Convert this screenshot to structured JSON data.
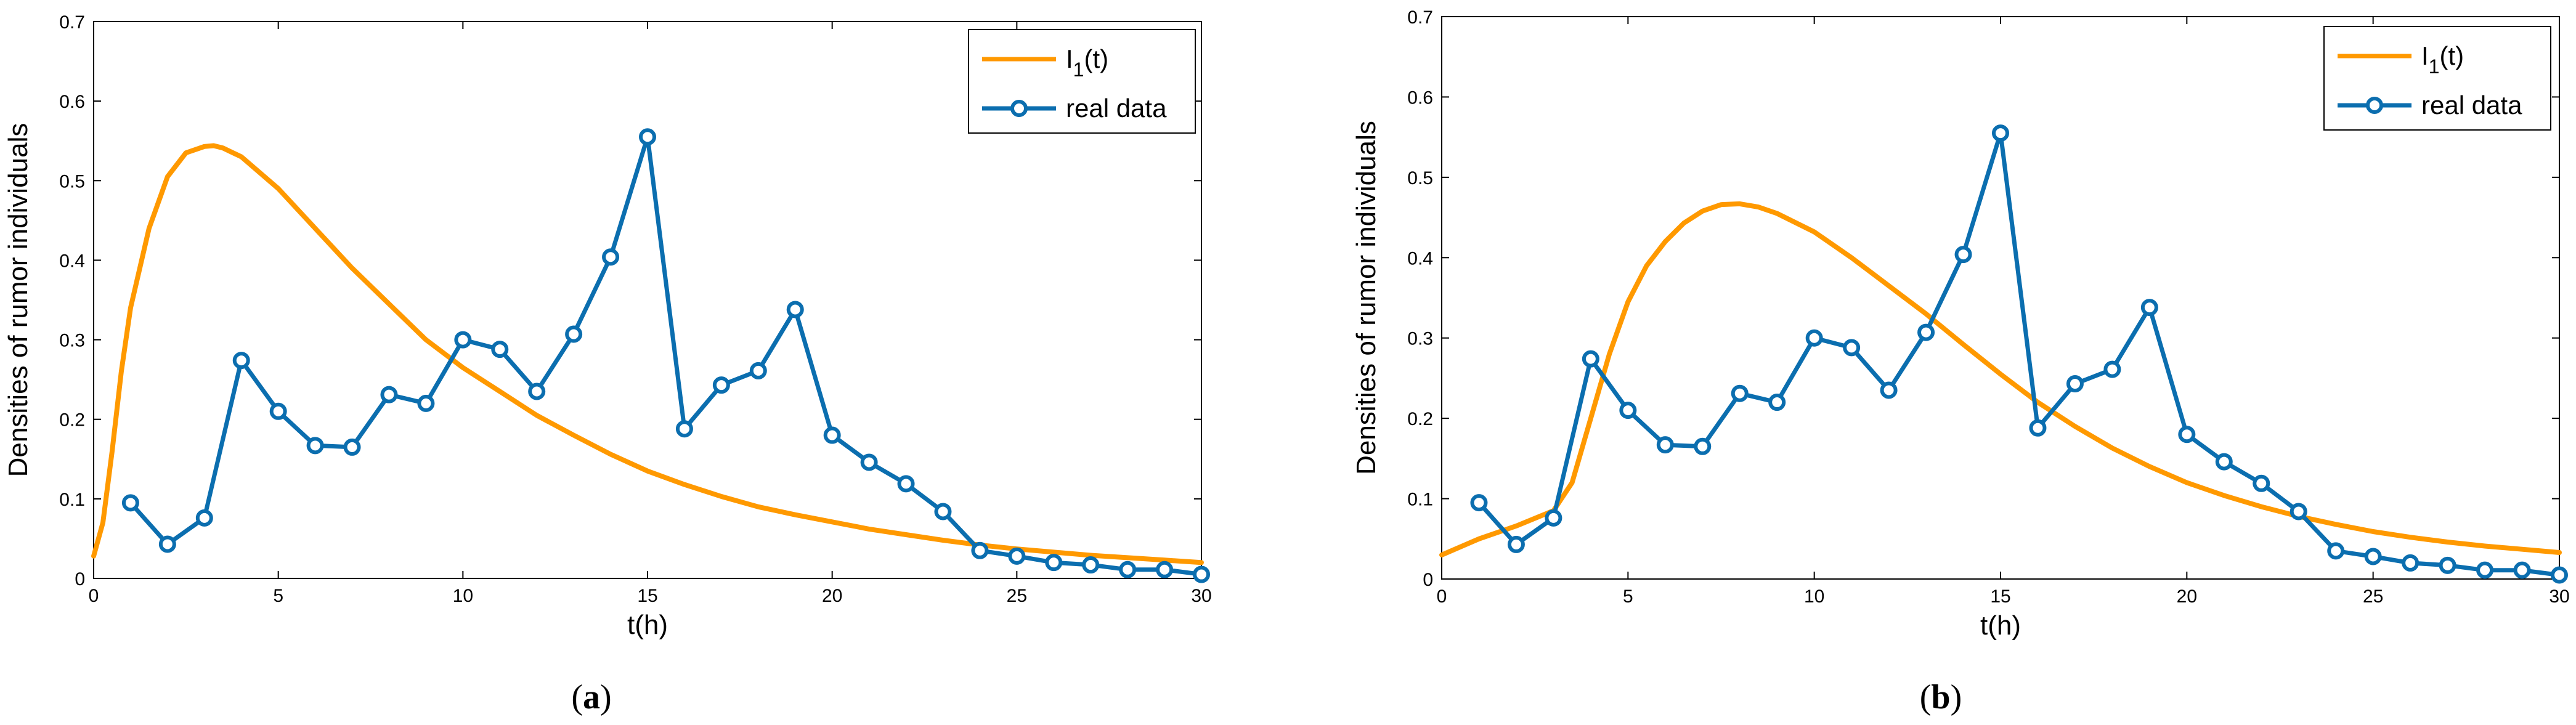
{
  "chart_data": [
    {
      "type": "line",
      "caption_label": "a",
      "xlabel": "t(h)",
      "ylabel": "Densities of rumor individuals",
      "xlim": [
        0,
        30
      ],
      "ylim": [
        0,
        0.7
      ],
      "xticks": [
        "0",
        "5",
        "10",
        "15",
        "20",
        "25",
        "30"
      ],
      "yticks": [
        "0",
        "0.1",
        "0.2",
        "0.3",
        "0.4",
        "0.5",
        "0.6",
        "0.7"
      ],
      "legend": {
        "position": "top-right",
        "entries": [
          {
            "main": "I",
            "sub": "1",
            "tail": "(t)"
          },
          {
            "main": "real data",
            "sub": "",
            "tail": ""
          }
        ]
      },
      "series": [
        {
          "name": "I1(t)",
          "color": "#ff9900",
          "marker": "none",
          "x": [
            0,
            0.25,
            0.5,
            0.75,
            1,
            1.5,
            2,
            2.5,
            3,
            3.25,
            3.5,
            4,
            5,
            6,
            7,
            8,
            9,
            10,
            11,
            12,
            13,
            14,
            15,
            16,
            17,
            18,
            19,
            20,
            21,
            22,
            23,
            24,
            25,
            26,
            27,
            28,
            29,
            30
          ],
          "y": [
            0.028,
            0.07,
            0.16,
            0.26,
            0.34,
            0.44,
            0.505,
            0.535,
            0.543,
            0.544,
            0.541,
            0.53,
            0.49,
            0.44,
            0.39,
            0.345,
            0.3,
            0.265,
            0.235,
            0.205,
            0.18,
            0.156,
            0.135,
            0.118,
            0.103,
            0.09,
            0.08,
            0.071,
            0.062,
            0.055,
            0.048,
            0.042,
            0.037,
            0.033,
            0.029,
            0.026,
            0.023,
            0.02
          ]
        },
        {
          "name": "real data",
          "color": "#0b6eaf",
          "marker": "circle",
          "x": [
            1,
            2,
            3,
            4,
            5,
            6,
            7,
            8,
            9,
            10,
            11,
            12,
            13,
            14,
            15,
            16,
            17,
            18,
            19,
            20,
            21,
            22,
            23,
            24,
            25,
            26,
            27,
            28,
            29,
            30
          ],
          "y": [
            0.095,
            0.043,
            0.076,
            0.274,
            0.21,
            0.167,
            0.165,
            0.231,
            0.22,
            0.3,
            0.288,
            0.235,
            0.307,
            0.404,
            0.555,
            0.188,
            0.243,
            0.261,
            0.338,
            0.18,
            0.146,
            0.119,
            0.084,
            0.035,
            0.028,
            0.02,
            0.017,
            0.011,
            0.011,
            0.005
          ]
        }
      ]
    },
    {
      "type": "line",
      "caption_label": "b",
      "xlabel": "t(h)",
      "ylabel": "Densities of rumor individuals",
      "xlim": [
        0,
        30
      ],
      "ylim": [
        0,
        0.7
      ],
      "xticks": [
        "0",
        "5",
        "10",
        "15",
        "20",
        "25",
        "30"
      ],
      "yticks": [
        "0",
        "0.1",
        "0.2",
        "0.3",
        "0.4",
        "0.5",
        "0.6",
        "0.7"
      ],
      "legend": {
        "position": "top-right",
        "entries": [
          {
            "main": "I",
            "sub": "1",
            "tail": "(t)"
          },
          {
            "main": "real data",
            "sub": "",
            "tail": ""
          }
        ]
      },
      "series": [
        {
          "name": "I1(t)",
          "color": "#ff9900",
          "marker": "none",
          "x": [
            0,
            1,
            2,
            3,
            3.5,
            4,
            4.5,
            5,
            5.5,
            6,
            6.5,
            7,
            7.5,
            8,
            8.5,
            9,
            10,
            11,
            12,
            13,
            14,
            15,
            16,
            17,
            18,
            19,
            20,
            21,
            22,
            23,
            24,
            25,
            26,
            27,
            28,
            29,
            30
          ],
          "y": [
            0.03,
            0.05,
            0.066,
            0.085,
            0.12,
            0.2,
            0.28,
            0.345,
            0.39,
            0.42,
            0.443,
            0.458,
            0.466,
            0.467,
            0.463,
            0.455,
            0.432,
            0.4,
            0.365,
            0.33,
            0.292,
            0.255,
            0.22,
            0.19,
            0.163,
            0.14,
            0.12,
            0.104,
            0.09,
            0.078,
            0.068,
            0.059,
            0.052,
            0.046,
            0.041,
            0.037,
            0.033
          ]
        },
        {
          "name": "real data",
          "color": "#0b6eaf",
          "marker": "circle",
          "x": [
            1,
            2,
            3,
            4,
            5,
            6,
            7,
            8,
            9,
            10,
            11,
            12,
            13,
            14,
            15,
            16,
            17,
            18,
            19,
            20,
            21,
            22,
            23,
            24,
            25,
            26,
            27,
            28,
            29,
            30
          ],
          "y": [
            0.095,
            0.043,
            0.076,
            0.274,
            0.21,
            0.167,
            0.165,
            0.231,
            0.22,
            0.3,
            0.288,
            0.235,
            0.307,
            0.404,
            0.555,
            0.188,
            0.243,
            0.261,
            0.338,
            0.18,
            0.146,
            0.119,
            0.084,
            0.035,
            0.028,
            0.02,
            0.017,
            0.011,
            0.011,
            0.005
          ]
        }
      ]
    }
  ]
}
